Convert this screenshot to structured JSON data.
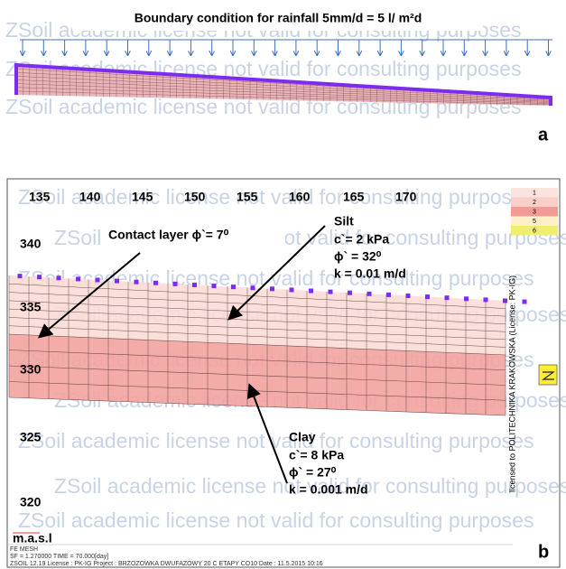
{
  "panel_a": {
    "title": "Boundary condition for rainfall 5mm/d = 5 l/ m²d",
    "label": "a"
  },
  "watermark": "ZSoil academic license not valid for consulting purposes",
  "panel_b": {
    "label": "b",
    "x_labels": [
      "135",
      "140",
      "145",
      "150",
      "155",
      "160",
      "165",
      "170"
    ],
    "y_labels": [
      "340",
      "335",
      "330",
      "325",
      "320"
    ],
    "axis_unit": "m.a.s.l",
    "contact_layer": "Contact layer ϕ`= 7⁰",
    "silt": [
      "Silt",
      "c`= 2 kPa",
      "ϕ` = 32⁰",
      "k = 0.01 m/d"
    ],
    "clay": [
      "Clay",
      "c`= 8 kPa",
      "ϕ` = 27⁰",
      "k = 0.001 m/d"
    ],
    "legend": [
      "1",
      "2",
      "3",
      "5",
      "6"
    ],
    "license": "licensed to POLITECHNIKA KRAKOWSKA (License: PK-IG)",
    "footer": [
      "FE MESH",
      "SF = 1.270000  TIME = 70.000[day]",
      "ZSOIL 12.19  License : PK-IG  Project : BRZOZOWKA DWUFAZOWY 20 C ETAPY CO10   Date : 11.5.2015 10:16"
    ]
  }
}
